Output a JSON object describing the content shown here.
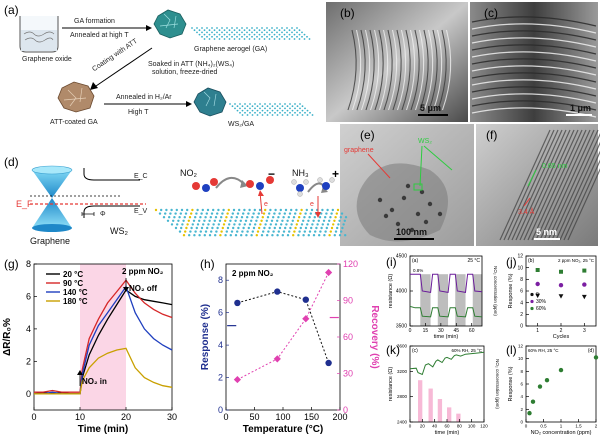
{
  "panels": {
    "a": {
      "label": "(a)",
      "graphene_oxide": "Graphene oxide",
      "ga_formation": "GA formation",
      "annealed_high_t": "Annealed at high T",
      "graphene_aerogel": "Graphene aerogel (GA)",
      "coating_att": "Coating with ATT",
      "soaked": "Soaked in ATT (NH₄)₂(WS₄)",
      "solution_fd": "solution, freeze-dried",
      "att_coated_ga": "ATT-coated GA",
      "annealed_h2": "Annealed in H₂/Ar",
      "high_t": "High T",
      "ws2_ga": "WS₂/GA"
    },
    "b": {
      "label": "(b)",
      "scale": "5 μm"
    },
    "c": {
      "label": "(c)",
      "scale": "1 μm"
    },
    "e": {
      "label": "(e)",
      "scale": "100 nm",
      "graphene_label": "graphene",
      "ws2_label": "WS₂"
    },
    "f": {
      "label": "(f)",
      "scale": "5 nm",
      "spacing_label": "0.65 nm",
      "spacing2_label": "3.4 Å"
    },
    "d": {
      "label": "(d)",
      "ec": "E_C",
      "ev": "E_V",
      "ef": "E_F",
      "phi": "Φ",
      "graphene": "Graphene",
      "ws2": "WS₂",
      "no2": "NO₂",
      "nh3": "NH₃",
      "e1": "e",
      "e2": "e",
      "minus": "−",
      "plus": "+"
    },
    "g": {
      "label": "(g)",
      "xlabel": "Time (min)",
      "ylabel": "ΔR/R₀%",
      "annotation_top": "2 ppm NO₂",
      "no2_off": "NO₂ off",
      "no2_in": "NO₂ in",
      "legend": [
        "20 °C",
        "90 °C",
        "140 °C",
        "180 °C"
      ]
    },
    "h": {
      "label": "(h)",
      "annotation": "2 ppm NO₂",
      "xlabel": "Temperature (°C)",
      "ylabel_left": "Response (%)",
      "ylabel_right": "Recovery (%)"
    },
    "i": {
      "label": "(i)",
      "inner": "(a)",
      "cond": "25 °C",
      "xlabel": "time (min)",
      "ylabel": "resistance (Ω)",
      "ylabel_right": "NO₂ concentration (ppm)",
      "inset": "0.8%"
    },
    "j": {
      "label": "(j)",
      "inner": "(b)",
      "cond": "2 ppm NO₂, 25 °C",
      "xlabel": "Cycles",
      "ylabel": "Response (%)",
      "legend": [
        "0",
        "30%",
        "60%"
      ]
    },
    "k": {
      "label": "(k)",
      "inner": "(c)",
      "cond": "60% RH, 25 °C",
      "xlabel": "time (min)",
      "ylabel": "resistance (Ω)",
      "ylabel_right": "NO₂ concentration (ppm)"
    },
    "l": {
      "label": "(l)",
      "inner": "(d)",
      "cond": "60% RH, 25 °C",
      "xlabel": "NO₂ concentration (ppm)",
      "ylabel": "Response (%)"
    }
  },
  "chart_data": [
    {
      "id": "g",
      "type": "line",
      "xlabel": "Time (min)",
      "ylabel": "ΔR/R₀%",
      "xlim": [
        0,
        30
      ],
      "ylim": [
        -1,
        8
      ],
      "xticks": [
        0,
        10,
        20,
        30
      ],
      "yticks": [
        0,
        2,
        4,
        6,
        8
      ],
      "shaded": [
        10,
        20
      ],
      "series": [
        {
          "name": "20 °C",
          "color": "#000000",
          "x": [
            0,
            2,
            4,
            6,
            8,
            10,
            10.5,
            12,
            14,
            16,
            18,
            20,
            22,
            24,
            26,
            28,
            30
          ],
          "y": [
            0,
            0.1,
            0,
            0.1,
            0,
            0,
            1.0,
            2.4,
            3.6,
            4.6,
            5.5,
            6.4,
            6.0,
            5.8,
            5.7,
            5.6,
            5.5
          ]
        },
        {
          "name": "90 °C",
          "color": "#d62728",
          "x": [
            0,
            2,
            4,
            6,
            8,
            10,
            10.5,
            12,
            14,
            16,
            18,
            20,
            22,
            24,
            26,
            28,
            30
          ],
          "y": [
            0.1,
            0.1,
            0.2,
            0.1,
            0.1,
            0.1,
            1.5,
            3.4,
            4.6,
            5.6,
            6.3,
            7.0,
            6.2,
            5.6,
            5.2,
            4.9,
            4.7
          ]
        },
        {
          "name": "140 °C",
          "color": "#1f3fbf",
          "x": [
            0,
            2,
            4,
            6,
            8,
            10,
            10.5,
            12,
            14,
            16,
            18,
            20,
            22,
            24,
            26,
            28,
            30
          ],
          "y": [
            0,
            0,
            0.1,
            0,
            0,
            0,
            1.2,
            3.0,
            4.2,
            5.0,
            5.8,
            6.6,
            5.0,
            4.0,
            3.4,
            3.0,
            2.7
          ]
        },
        {
          "name": "180 °C",
          "color": "#c9a000",
          "x": [
            0,
            2,
            4,
            6,
            8,
            10,
            10.5,
            12,
            14,
            16,
            18,
            20,
            22,
            24,
            26,
            28,
            30
          ],
          "y": [
            0,
            0,
            0,
            0,
            0,
            0,
            0.8,
            1.6,
            2.2,
            2.5,
            2.7,
            2.8,
            1.6,
            1.0,
            0.7,
            0.5,
            0.4
          ]
        }
      ]
    },
    {
      "id": "h",
      "type": "scatter",
      "xlabel": "Temperature (°C)",
      "xlim": [
        0,
        200
      ],
      "xticks": [
        0,
        50,
        100,
        150,
        200
      ],
      "series": [
        {
          "name": "",
          "axis": "left",
          "color": "#1f2f8f",
          "ylim": [
            0,
            9
          ],
          "yticks": [
            0,
            2,
            4,
            6,
            8
          ],
          "x": [
            20,
            90,
            140,
            180
          ],
          "y": [
            6.6,
            7.3,
            6.8,
            2.9
          ]
        },
        {
          "name": "",
          "axis": "right",
          "color": "#e040b0",
          "ylim": [
            0,
            120
          ],
          "yticks": [
            0,
            30,
            60,
            90,
            120
          ],
          "x": [
            20,
            90,
            140,
            180
          ],
          "y": [
            25,
            42,
            75,
            113
          ]
        }
      ]
    },
    {
      "id": "i",
      "type": "line",
      "xlabel": "time (min)",
      "ylabel": "resistance (Ω)",
      "xlim": [
        0,
        70
      ],
      "ylim": [
        3500,
        4500
      ],
      "xticks": [
        0,
        15,
        30,
        45,
        60
      ],
      "yticks": [
        3500,
        4000,
        4500
      ],
      "pulses": [
        [
          10,
          20
        ],
        [
          27,
          37
        ],
        [
          44,
          54
        ],
        [
          61,
          70
        ]
      ],
      "series": [
        {
          "name": "",
          "color": "#6a1b9a",
          "x": [
            0,
            5,
            10,
            12,
            20,
            22,
            27,
            29,
            37,
            39,
            44,
            46,
            54,
            56,
            61,
            63,
            70
          ],
          "y": [
            4240,
            4240,
            4240,
            4000,
            3980,
            4240,
            4240,
            4000,
            3980,
            4240,
            4240,
            4000,
            3980,
            4240,
            4240,
            4000,
            3990
          ]
        },
        {
          "name": "",
          "color": "#2e7d32",
          "x": [
            0,
            5,
            10,
            12,
            20,
            22,
            27,
            29,
            37,
            39,
            44,
            46,
            54,
            56,
            61,
            63,
            70
          ],
          "y": [
            3780,
            3760,
            3760,
            3640,
            3630,
            3760,
            3760,
            3640,
            3630,
            3760,
            3760,
            3640,
            3630,
            3760,
            3760,
            3640,
            3630
          ]
        }
      ]
    },
    {
      "id": "j",
      "type": "scatter",
      "xlabel": "Cycles",
      "ylabel": "Response (%)",
      "xlim": [
        0.5,
        3.5
      ],
      "ylim": [
        0,
        12
      ],
      "xticks": [
        1,
        2,
        3
      ],
      "yticks": [
        0,
        2,
        4,
        6,
        8,
        10,
        12
      ],
      "series": [
        {
          "name": "0",
          "color": "#111111",
          "x": [
            1,
            2,
            3
          ],
          "y": [
            5.2,
            5.1,
            5.0
          ]
        },
        {
          "name": "30%",
          "color": "#7b1fa2",
          "x": [
            1,
            2,
            3
          ],
          "y": [
            7.2,
            7.0,
            7.1
          ]
        },
        {
          "name": "60%",
          "color": "#2e7d32",
          "x": [
            1,
            2,
            3
          ],
          "y": [
            9.6,
            9.3,
            9.5
          ]
        }
      ]
    },
    {
      "id": "k",
      "type": "line",
      "xlabel": "time (min)",
      "ylabel": "resistance (Ω)",
      "xlim": [
        0,
        120
      ],
      "ylim": [
        2400,
        3600
      ],
      "xticks": [
        0,
        20,
        40,
        60,
        80,
        100,
        120
      ],
      "yticks": [
        2400,
        2800,
        3200,
        3600
      ],
      "bars": [
        [
          13,
          20,
          1.0
        ],
        [
          30,
          37,
          0.8
        ],
        [
          45,
          52,
          0.55
        ],
        [
          60,
          67,
          0.35
        ],
        [
          75,
          82,
          0.2
        ]
      ],
      "series": [
        {
          "name": "",
          "color": "#2e7d32",
          "x": [
            0,
            10,
            13,
            20,
            25,
            30,
            37,
            42,
            45,
            52,
            57,
            60,
            67,
            72,
            75,
            82,
            90,
            100,
            110,
            120
          ],
          "y": [
            3240,
            3250,
            3180,
            3150,
            3300,
            3320,
            3270,
            3360,
            3380,
            3340,
            3410,
            3420,
            3390,
            3450,
            3460,
            3440,
            3470,
            3480,
            3490,
            3500
          ]
        }
      ]
    },
    {
      "id": "l",
      "type": "scatter",
      "xlabel": "NO₂ concentration (ppm)",
      "ylabel": "Response (%)",
      "xlim": [
        0,
        2
      ],
      "ylim": [
        0,
        12
      ],
      "xticks": [
        0,
        0.5,
        1,
        1.5,
        2
      ],
      "yticks": [
        0,
        2,
        4,
        6,
        8,
        10,
        12
      ],
      "series": [
        {
          "name": "",
          "color": "#2e7d32",
          "x": [
            0.1,
            0.2,
            0.4,
            0.6,
            1.0,
            2.0
          ],
          "y": [
            1.4,
            3.2,
            5.6,
            6.6,
            8.2,
            10.2
          ]
        }
      ]
    }
  ]
}
